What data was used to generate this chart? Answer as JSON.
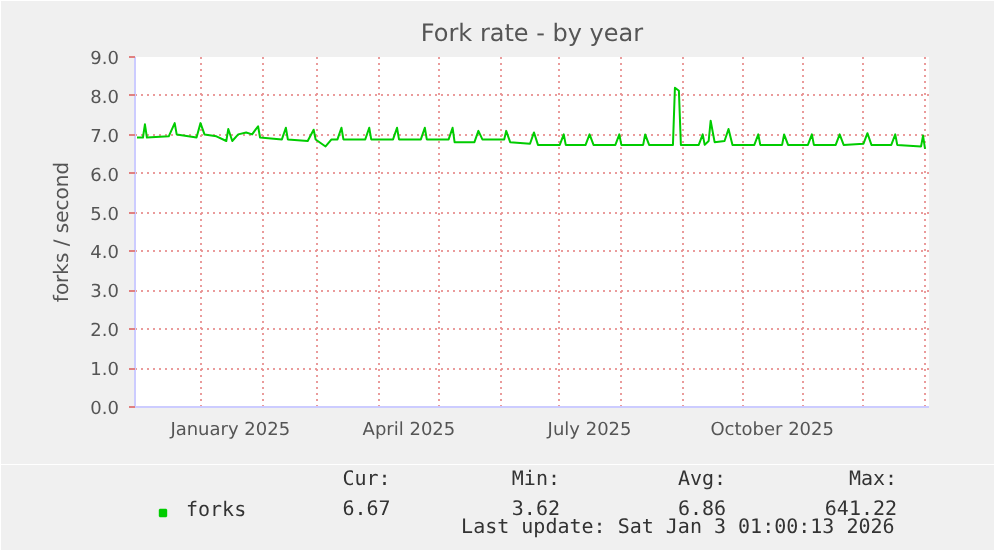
{
  "chart_data": {
    "type": "line",
    "title": "Fork rate - by year",
    "ylabel": "forks / second",
    "xlim": [
      "2024-11-29",
      "2026-01-03"
    ],
    "ylim": [
      0,
      9
    ],
    "yticks": [
      {
        "value": 0,
        "label": "0.0"
      },
      {
        "value": 1,
        "label": "1.0"
      },
      {
        "value": 2,
        "label": "2.0"
      },
      {
        "value": 3,
        "label": "3.0"
      },
      {
        "value": 4,
        "label": "4.0"
      },
      {
        "value": 5,
        "label": "5.0"
      },
      {
        "value": 6,
        "label": "6.0"
      },
      {
        "value": 7,
        "label": "7.0"
      },
      {
        "value": 8,
        "label": "8.0"
      },
      {
        "value": 9,
        "label": "9.0"
      }
    ],
    "xticks": [
      {
        "value": "2025-01-01",
        "label": null
      },
      {
        "value": "2025-01-16",
        "label": "January 2025"
      },
      {
        "value": "2025-02-01",
        "label": null
      },
      {
        "value": "2025-03-01",
        "label": null
      },
      {
        "value": "2025-04-01",
        "label": null
      },
      {
        "value": "2025-04-16",
        "label": "April 2025"
      },
      {
        "value": "2025-05-01",
        "label": null
      },
      {
        "value": "2025-06-01",
        "label": null
      },
      {
        "value": "2025-07-01",
        "label": null
      },
      {
        "value": "2025-07-16",
        "label": "July 2025"
      },
      {
        "value": "2025-08-01",
        "label": null
      },
      {
        "value": "2025-09-01",
        "label": null
      },
      {
        "value": "2025-10-01",
        "label": null
      },
      {
        "value": "2025-10-16",
        "label": "October 2025"
      },
      {
        "value": "2025-11-01",
        "label": null
      },
      {
        "value": "2025-12-01",
        "label": null
      },
      {
        "value": "2026-01-01",
        "label": null
      }
    ],
    "grid": true,
    "legend": "bottom",
    "marker": "none",
    "line_style": "solid",
    "x": [
      "2024-11-30",
      "2024-12-03",
      "2024-12-04",
      "2024-12-05",
      "2024-12-16",
      "2024-12-19",
      "2024-12-20",
      "2024-12-30",
      "2025-01-01",
      "2025-01-03",
      "2025-01-09",
      "2025-01-14",
      "2025-01-15",
      "2025-01-17",
      "2025-01-20",
      "2025-01-24",
      "2025-01-27",
      "2025-01-30",
      "2025-01-31",
      "2025-02-11",
      "2025-02-13",
      "2025-02-14",
      "2025-02-24",
      "2025-02-27",
      "2025-02-28",
      "2025-03-05",
      "2025-03-08",
      "2025-03-11",
      "2025-03-13",
      "2025-03-14",
      "2025-03-25",
      "2025-03-27",
      "2025-03-28",
      "2025-04-08",
      "2025-04-10",
      "2025-04-11",
      "2025-04-22",
      "2025-04-24",
      "2025-04-25",
      "2025-05-06",
      "2025-05-08",
      "2025-05-09",
      "2025-05-19",
      "2025-05-21",
      "2025-05-23",
      "2025-06-03",
      "2025-06-04",
      "2025-06-06",
      "2025-06-16",
      "2025-06-18",
      "2025-06-20",
      "2025-07-01",
      "2025-07-03",
      "2025-07-04",
      "2025-07-14",
      "2025-07-16",
      "2025-07-18",
      "2025-07-29",
      "2025-07-31",
      "2025-08-01",
      "2025-08-12",
      "2025-08-13",
      "2025-08-15",
      "2025-08-27",
      "2025-08-28",
      "2025-08-30",
      "2025-08-31",
      "2025-09-09",
      "2025-09-11",
      "2025-09-12",
      "2025-09-14",
      "2025-09-15",
      "2025-09-17",
      "2025-09-22",
      "2025-09-24",
      "2025-09-26",
      "2025-10-07",
      "2025-10-09",
      "2025-10-10",
      "2025-10-21",
      "2025-10-22",
      "2025-10-24",
      "2025-11-03",
      "2025-11-05",
      "2025-11-06",
      "2025-11-17",
      "2025-11-19",
      "2025-11-21",
      "2025-12-01",
      "2025-12-03",
      "2025-12-05",
      "2025-12-15",
      "2025-12-17",
      "2025-12-18",
      "2025-12-30",
      "2025-12-31",
      "2026-01-01"
    ],
    "series": [
      {
        "name": "forks",
        "color": "#00cc00",
        "values": [
          6.93,
          6.93,
          7.27,
          6.93,
          6.96,
          7.3,
          7.01,
          6.93,
          7.3,
          7.01,
          6.96,
          6.84,
          7.15,
          6.84,
          7.01,
          7.06,
          7.01,
          7.22,
          6.93,
          6.88,
          7.18,
          6.88,
          6.84,
          7.13,
          6.88,
          6.7,
          6.88,
          6.88,
          7.18,
          6.88,
          6.88,
          7.18,
          6.88,
          6.88,
          7.18,
          6.88,
          6.88,
          7.18,
          6.88,
          6.88,
          7.18,
          6.81,
          6.81,
          7.1,
          6.88,
          6.88,
          7.1,
          6.81,
          6.77,
          7.06,
          6.74,
          6.74,
          7.01,
          6.74,
          6.74,
          7.01,
          6.74,
          6.74,
          7.01,
          6.74,
          6.74,
          7.01,
          6.74,
          6.74,
          8.21,
          8.13,
          6.74,
          6.74,
          7.01,
          6.74,
          6.84,
          7.36,
          6.81,
          6.84,
          7.15,
          6.74,
          6.74,
          7.01,
          6.74,
          6.74,
          7.01,
          6.74,
          6.74,
          7.01,
          6.74,
          6.74,
          7.01,
          6.74,
          6.77,
          7.04,
          6.74,
          6.74,
          7.01,
          6.74,
          6.7,
          6.98,
          6.64
        ]
      }
    ],
    "annotations": [
      "Cur:",
      "Min:",
      "Avg:",
      "Max:",
      "6.67",
      "3.62",
      "6.86",
      "641.22",
      "Last update: Sat Jan  3 01:00:13 2026"
    ]
  }
}
